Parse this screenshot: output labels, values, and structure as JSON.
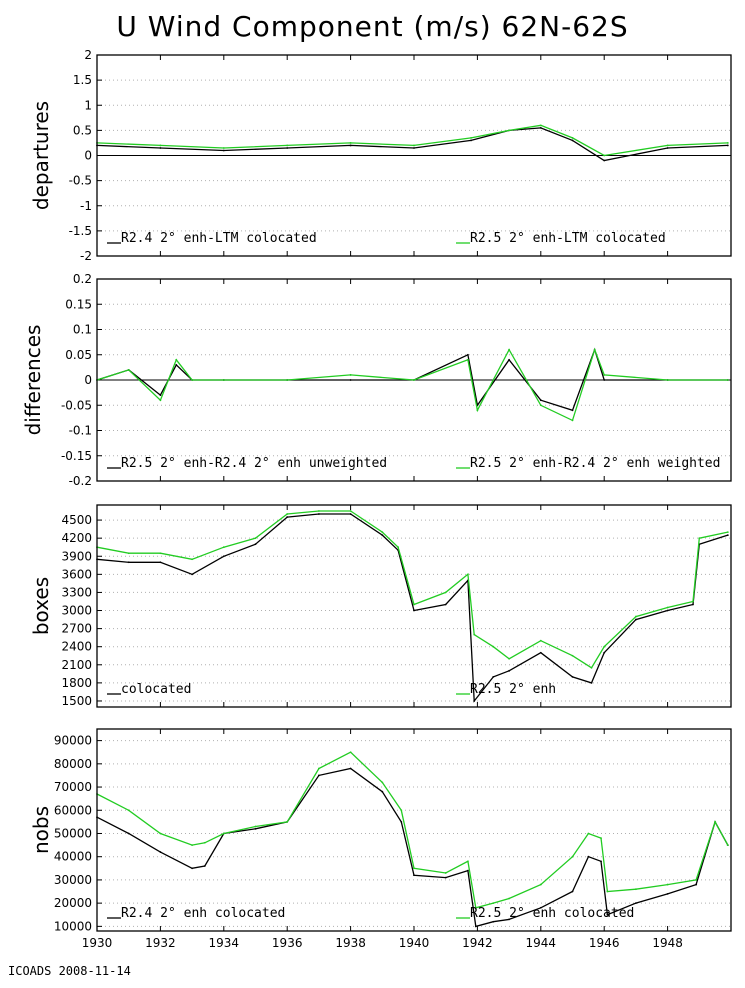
{
  "title": "U Wind Component (m/s) 62N-62S",
  "footer": "ICOADS 2008-11-14",
  "colors": {
    "black_series": "#000000",
    "green_series": "#22cc22",
    "grid": "#b0b0b0",
    "zero_line": "#000000"
  },
  "x_axis": {
    "range": [
      1930,
      1950
    ],
    "ticks": [
      1930,
      1932,
      1934,
      1936,
      1938,
      1940,
      1942,
      1944,
      1946,
      1948
    ],
    "tick_labels": [
      "1930",
      "1932",
      "1934",
      "1936",
      "1938",
      "1940",
      "1942",
      "1944",
      "1946",
      "1948"
    ]
  },
  "chart_data": [
    {
      "type": "line",
      "ylabel": "departures",
      "ylim": [
        -2,
        2
      ],
      "yticks": [
        -2,
        -1.5,
        -1,
        -0.5,
        0,
        0.5,
        1,
        1.5,
        2
      ],
      "ytick_labels": [
        "-2",
        "-1.5",
        "-1",
        "-0.5",
        "0",
        "0.5",
        "1",
        "1.5",
        "2"
      ],
      "zero_line": true,
      "legend": [
        "R2.4 2° enh-LTM colocated",
        "R2.5 2° enh-LTM colocated"
      ],
      "x": [
        1930,
        1932,
        1934,
        1936,
        1938,
        1940,
        1941.8,
        1943,
        1944,
        1945,
        1946,
        1948,
        1949.9
      ],
      "series": [
        {
          "name": "R2.4 2° enh-LTM colocated",
          "values": [
            0.2,
            0.15,
            0.1,
            0.15,
            0.2,
            0.15,
            0.3,
            0.5,
            0.55,
            0.3,
            -0.1,
            0.15,
            0.2
          ]
        },
        {
          "name": "R2.5 2° enh-LTM colocated",
          "values": [
            0.25,
            0.2,
            0.15,
            0.2,
            0.25,
            0.2,
            0.35,
            0.5,
            0.6,
            0.35,
            0.0,
            0.2,
            0.25
          ]
        }
      ]
    },
    {
      "type": "line",
      "ylabel": "differences",
      "ylim": [
        -0.2,
        0.2
      ],
      "yticks": [
        -0.2,
        -0.15,
        -0.1,
        -0.05,
        0,
        0.05,
        0.1,
        0.15,
        0.2
      ],
      "ytick_labels": [
        "-0.2",
        "-0.15",
        "-0.1",
        "-0.05",
        "0",
        "0.05",
        "0.1",
        "0.15",
        "0.2"
      ],
      "zero_line": true,
      "legend": [
        "R2.5 2° enh-R2.4 2° enh unweighted",
        "R2.5 2° enh-R2.4 2° enh weighted"
      ],
      "x": [
        1930,
        1931,
        1932,
        1932.5,
        1933,
        1934,
        1936,
        1938,
        1940,
        1941.7,
        1942,
        1943,
        1944,
        1945,
        1945.7,
        1946,
        1948,
        1949.9
      ],
      "series": [
        {
          "name": "R2.5 2° enh-R2.4 2° enh unweighted",
          "values": [
            0.0,
            0.02,
            -0.03,
            0.03,
            0.0,
            0.0,
            0.0,
            0.0,
            0.0,
            0.05,
            -0.05,
            0.04,
            -0.04,
            -0.06,
            0.06,
            0.0,
            0.0,
            0.0
          ]
        },
        {
          "name": "R2.5 2° enh-R2.4 2° enh weighted",
          "values": [
            0.0,
            0.02,
            -0.04,
            0.04,
            0.0,
            0.0,
            0.0,
            0.01,
            0.0,
            0.04,
            -0.06,
            0.06,
            -0.05,
            -0.08,
            0.06,
            0.01,
            0.0,
            0.0
          ]
        }
      ]
    },
    {
      "type": "line",
      "ylabel": "boxes",
      "ylim": [
        1400,
        4750
      ],
      "yticks": [
        1500,
        1800,
        2100,
        2400,
        2700,
        3000,
        3300,
        3600,
        3900,
        4200,
        4500
      ],
      "ytick_labels": [
        "1500",
        "1800",
        "2100",
        "2400",
        "2700",
        "3000",
        "3300",
        "3600",
        "3900",
        "4200",
        "4500"
      ],
      "zero_line": false,
      "legend": [
        "colocated",
        "R2.5 2° enh"
      ],
      "x": [
        1930,
        1931,
        1932,
        1933,
        1934,
        1935,
        1936,
        1937,
        1938,
        1939,
        1939.5,
        1940,
        1941,
        1941.7,
        1941.9,
        1942.5,
        1943,
        1944,
        1945,
        1945.6,
        1946,
        1947,
        1948,
        1948.8,
        1949,
        1949.9
      ],
      "series": [
        {
          "name": "colocated",
          "values": [
            3850,
            3800,
            3800,
            3600,
            3900,
            4100,
            4550,
            4600,
            4600,
            4250,
            4000,
            3000,
            3100,
            3500,
            1500,
            1900,
            2000,
            2300,
            1900,
            1800,
            2300,
            2850,
            3000,
            3100,
            4100,
            4250
          ]
        },
        {
          "name": "R2.5 2° enh",
          "values": [
            4050,
            3950,
            3950,
            3850,
            4050,
            4200,
            4600,
            4650,
            4650,
            4300,
            4050,
            3100,
            3300,
            3600,
            2600,
            2400,
            2200,
            2500,
            2250,
            2050,
            2400,
            2900,
            3050,
            3150,
            4200,
            4300
          ]
        }
      ]
    },
    {
      "type": "line",
      "ylabel": "nobs",
      "ylim": [
        8000,
        95000
      ],
      "yticks": [
        10000,
        20000,
        30000,
        40000,
        50000,
        60000,
        70000,
        80000,
        90000
      ],
      "ytick_labels": [
        "10000",
        "20000",
        "30000",
        "40000",
        "50000",
        "60000",
        "70000",
        "80000",
        "90000"
      ],
      "zero_line": false,
      "legend": [
        "R2.4 2° enh colocated",
        "R2.5 2° enh colocated"
      ],
      "x": [
        1930,
        1931,
        1932,
        1933,
        1933.4,
        1934,
        1935,
        1936,
        1937,
        1938,
        1939,
        1939.6,
        1940,
        1941,
        1941.7,
        1941.95,
        1942.5,
        1943,
        1944,
        1945,
        1945.5,
        1945.9,
        1946.1,
        1947,
        1948,
        1948.9,
        1949.5,
        1949.9
      ],
      "series": [
        {
          "name": "R2.4 2° enh colocated",
          "values": [
            57000,
            50000,
            42000,
            35000,
            36000,
            50000,
            52000,
            55000,
            75000,
            78000,
            68000,
            55000,
            32000,
            31000,
            34000,
            10000,
            12000,
            13000,
            18000,
            25000,
            40000,
            38000,
            15000,
            20000,
            24000,
            28000,
            55000,
            45000
          ]
        },
        {
          "name": "R2.5 2° enh colocated",
          "values": [
            67000,
            60000,
            50000,
            45000,
            46000,
            50000,
            53000,
            55000,
            78000,
            85000,
            72000,
            60000,
            35000,
            33000,
            38000,
            18000,
            20000,
            22000,
            28000,
            40000,
            50000,
            48000,
            25000,
            26000,
            28000,
            30000,
            55000,
            45000
          ]
        }
      ]
    }
  ]
}
